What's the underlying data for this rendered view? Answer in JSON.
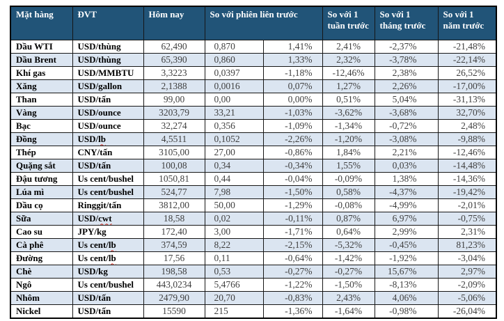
{
  "colors": {
    "header_bg": "#215478",
    "header_text": "#ffffff",
    "row_alt_bg": "#dbe5f1",
    "number_text": "#3f3f3f",
    "spellcheck_underline": "#d42a1e"
  },
  "table": {
    "headers": {
      "commodity": "Mặt hàng",
      "unit": "ĐVT",
      "today": "Hôm nay",
      "vs_prev_session": "So với phiên liên trước",
      "vs_week": "So với 1 tuần trước",
      "vs_month": "So với 1 tháng trước",
      "vs_year": "So với 1 năm trước"
    },
    "rows": [
      {
        "commodity": "Dầu WTI",
        "unit": "USD/thùng",
        "today": "62,490",
        "change": "0,870",
        "change_pct": "1,41%",
        "vs_week": "2,41%",
        "vs_month": "-2,37%",
        "vs_year": "-21,48%"
      },
      {
        "commodity": "Dầu Brent",
        "unit": "USD/thùng",
        "today": "65,390",
        "change": "0,860",
        "change_pct": "1,33%",
        "vs_week": "2,32%",
        "vs_month": "-3,78%",
        "vs_year": "-22,14%"
      },
      {
        "commodity": "Khí gas",
        "unit": "USD/MMBTU",
        "today": "3,3223",
        "change": "0,0397",
        "change_pct": "-1,18%",
        "vs_week": "-12,46%",
        "vs_month": "2,38%",
        "vs_year": "26,52%"
      },
      {
        "commodity": "Xăng",
        "unit": "USD/gallon",
        "today": "2,1388",
        "change": "0,0016",
        "change_pct": "0,07%",
        "vs_week": "1,27%",
        "vs_month": "2,26%",
        "vs_year": "-17,00%"
      },
      {
        "commodity": "Than",
        "unit": "USD/tấn",
        "today": "99,00",
        "change": "0,00",
        "change_pct": "0,00%",
        "vs_week": "0,51%",
        "vs_month": "5,04%",
        "vs_year": "-31,13%"
      },
      {
        "commodity": "Vàng",
        "unit": "USD/ounce",
        "today": "3203,79",
        "change": "33,21",
        "change_pct": "-1,03%",
        "vs_week": "-3,62%",
        "vs_month": "-3,68%",
        "vs_year": "32,70%"
      },
      {
        "commodity": "Bạc",
        "unit": "USD/ounce",
        "today": "32,274",
        "change": "0,356",
        "change_pct": "-1,09%",
        "vs_week": "-1,34%",
        "vs_month": "-0,72%",
        "vs_year": "2,48%"
      },
      {
        "commodity": "Đồng",
        "unit": "USD/lb",
        "unit_flag": "lb",
        "today": "4,5511",
        "change": "0,1052",
        "change_pct": "-2,26%",
        "vs_week": "-1,20%",
        "vs_month": "-3,08%",
        "vs_year": "-9,88%"
      },
      {
        "commodity": "Thép",
        "unit": "CNY/tấn",
        "today": "3105,00",
        "change": "27,00",
        "change_pct": "-0,86%",
        "vs_week": "1,84%",
        "vs_month": "2,21%",
        "vs_year": "-12,46%"
      },
      {
        "commodity": "Quặng sắt",
        "unit": "USD/tấn",
        "today": "100,08",
        "change": "0,34",
        "change_pct": "-0,34%",
        "vs_week": "1,55%",
        "vs_month": "0,03%",
        "vs_year": "-14,48%"
      },
      {
        "commodity": "Đậu tương",
        "unit": "Us cent/bushel",
        "today": "1050,81",
        "change": "0,44",
        "change_pct": "-0,04%",
        "vs_week": "-0,09%",
        "vs_month": "1,38%",
        "vs_year": "-14,36%"
      },
      {
        "commodity": "Lúa mì",
        "unit": "Us cent/bushel",
        "today": "524,77",
        "change": "7,98",
        "change_pct": "-1,50%",
        "vs_week": "0,58%",
        "vs_month": "-4,37%",
        "vs_year": "-19,42%"
      },
      {
        "commodity": "Dầu cọ",
        "unit": "Ringgit/tấn",
        "today": "3812,00",
        "change": "50,00",
        "change_pct": "-1,29%",
        "vs_week": "-0,08%",
        "vs_month": "-4,99%",
        "vs_year": "-2,01%"
      },
      {
        "commodity": "Sữa",
        "unit": "USD/cwt",
        "unit_flag": "cwt",
        "today": "18,58",
        "change": "0,02",
        "change_pct": "-0,11%",
        "vs_week": "0,87%",
        "vs_month": "6,97%",
        "vs_year": "-0,75%"
      },
      {
        "commodity": "Cao su",
        "unit": "JPY/kg",
        "today": "172,40",
        "change": "3,00",
        "change_pct": "-1,71%",
        "vs_week": "0,64%",
        "vs_month": "2,99%",
        "vs_year": "2,31%"
      },
      {
        "commodity": "Cà phê",
        "unit": "Us cent/lb",
        "unit_flag": "lb",
        "today": "374,59",
        "change": "8,22",
        "change_pct": "-2,15%",
        "vs_week": "-5,32%",
        "vs_month": "-0,45%",
        "vs_year": "81,23%"
      },
      {
        "commodity": "Đường",
        "unit": "Us cent/lb",
        "unit_flag": "lb",
        "today": "17,56",
        "change": "0,11",
        "change_pct": "-0,64%",
        "vs_week": "-1,42%",
        "vs_month": "-1,92%",
        "vs_year": "-3,04%"
      },
      {
        "commodity": "Chè",
        "unit": "USD/kg",
        "today": "198,58",
        "change": "0,53",
        "change_pct": "-0,27%",
        "vs_week": "-0,27%",
        "vs_month": "15,67%",
        "vs_year": "2,97%"
      },
      {
        "commodity": "Ngô",
        "unit": "Us cent/bushel",
        "today": "443,0234",
        "change": "5,4766",
        "change_pct": "-1,22%",
        "vs_week": "-1,50%",
        "vs_month": "-8,13%",
        "vs_year": "-2,09%"
      },
      {
        "commodity": "Nhôm",
        "unit": "USD/tấn",
        "today": "2479,90",
        "change": "20,70",
        "change_pct": "-0,83%",
        "vs_week": "2,43%",
        "vs_month": "4,06%",
        "vs_year": "-5,06%"
      },
      {
        "commodity": "Nickel",
        "unit": "USD/tấn",
        "today": "15590",
        "change": "215",
        "change_pct": "-1,36%",
        "vs_week": "-1,64%",
        "vs_month": "-0,98%",
        "vs_year": "-26,04%"
      }
    ]
  }
}
